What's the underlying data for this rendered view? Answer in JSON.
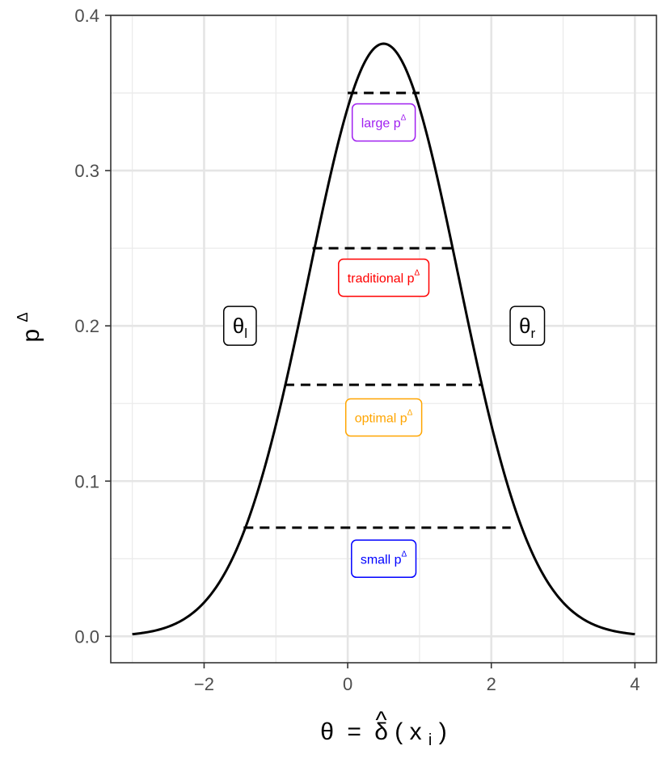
{
  "chart_data": {
    "type": "line",
    "title": "",
    "xlabel": "θ = δ̂(x_i)",
    "xlabel_parts": {
      "lhs": "θ",
      "eq": "=",
      "delta": "δ",
      "hat": "^",
      "paren_open": "(",
      "x": "x",
      "sub": "i",
      "paren_close": ")"
    },
    "ylabel": "p^Δ",
    "ylabel_parts": {
      "base": "p",
      "sup": "Δ"
    },
    "xlim": [
      -3.3,
      4.3
    ],
    "ylim": [
      -0.017,
      0.4
    ],
    "x_ticks": [
      -2,
      0,
      2,
      4
    ],
    "x_tick_labels": [
      "−2",
      "0",
      "2",
      "4"
    ],
    "y_ticks": [
      0.0,
      0.1,
      0.2,
      0.3,
      0.4
    ],
    "y_tick_labels": [
      "0.0",
      "0.1",
      "0.2",
      "0.3",
      "0.4"
    ],
    "x_minor_ticks": [
      -3,
      -1,
      1,
      3
    ],
    "y_minor_ticks": [
      0.05,
      0.15,
      0.25,
      0.35
    ],
    "grid": true,
    "curve": {
      "family": "normal-density",
      "mean": 0.5,
      "sd": 1.045,
      "x_range": [
        -3,
        4
      ],
      "color": "#000000"
    },
    "dashed_levels": [
      {
        "y": 0.35,
        "x_range": [
          0.0,
          1.0
        ]
      },
      {
        "y": 0.25,
        "x_range": [
          -0.49,
          1.49
        ]
      },
      {
        "y": 0.162,
        "x_range": [
          -0.88,
          1.88
        ]
      },
      {
        "y": 0.07,
        "x_range": [
          -1.45,
          2.27
        ]
      }
    ],
    "annotations": [
      {
        "id": "large",
        "label": "large p",
        "sup": "Δ",
        "x": 0.5,
        "y": 0.331,
        "color": "#A020F0"
      },
      {
        "id": "traditional",
        "label": "traditional p",
        "sup": "Δ",
        "x": 0.5,
        "y": 0.231,
        "color": "#FF0000"
      },
      {
        "id": "optimal",
        "label": "optimal p",
        "sup": "Δ",
        "x": 0.5,
        "y": 0.141,
        "color": "#FFA500"
      },
      {
        "id": "small",
        "label": "small p",
        "sup": "Δ",
        "x": 0.5,
        "y": 0.05,
        "color": "#0000FF"
      }
    ],
    "theta_labels": [
      {
        "id": "left",
        "base": "θ",
        "sub": "l",
        "x": -1.5,
        "y": 0.2
      },
      {
        "id": "right",
        "base": "θ",
        "sub": "r",
        "x": 2.5,
        "y": 0.2
      }
    ]
  }
}
